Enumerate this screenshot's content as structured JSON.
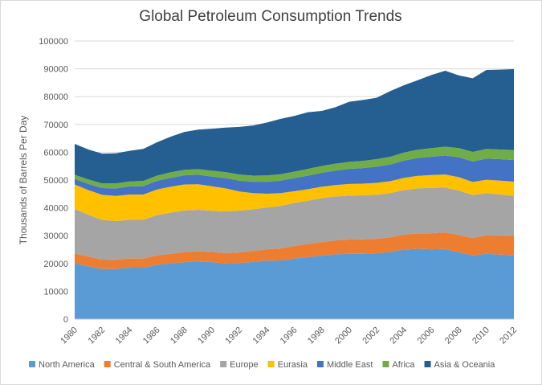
{
  "chart_data": {
    "type": "area",
    "stacked": true,
    "title": "Global Petroleum Consumption  Trends",
    "xlabel": "",
    "ylabel": "Thousands of Barrels Per Day",
    "ylim": [
      0,
      100000
    ],
    "yticks": [
      "0",
      "10000",
      "20000",
      "30000",
      "40000",
      "50000",
      "60000",
      "70000",
      "80000",
      "90000",
      "100000"
    ],
    "x": [
      1980,
      1981,
      1982,
      1983,
      1984,
      1985,
      1986,
      1987,
      1988,
      1989,
      1990,
      1991,
      1992,
      1993,
      1994,
      1995,
      1996,
      1997,
      1998,
      1999,
      2000,
      2001,
      2002,
      2003,
      2004,
      2005,
      2006,
      2007,
      2008,
      2009,
      2010,
      2011,
      2012
    ],
    "xticks": [
      "1980",
      "1982",
      "1984",
      "1986",
      "1988",
      "1990",
      "1992",
      "1994",
      "1996",
      "1998",
      "2000",
      "2002",
      "2004",
      "2006",
      "2008",
      "2010",
      "2012"
    ],
    "grid": true,
    "legend_position": "bottom",
    "series": [
      {
        "name": "North America",
        "color": "#5b9bd5",
        "values": [
          20000,
          19000,
          18000,
          18000,
          18500,
          18500,
          19500,
          20000,
          20500,
          20800,
          20500,
          20000,
          20200,
          20600,
          21000,
          21100,
          21800,
          22300,
          22800,
          23300,
          23500,
          23500,
          23700,
          24200,
          25000,
          25300,
          25100,
          25200,
          24000,
          22900,
          23500,
          23200,
          23000
        ]
      },
      {
        "name": "Central & South America",
        "color": "#ed7d31",
        "values": [
          3600,
          3500,
          3400,
          3300,
          3300,
          3300,
          3400,
          3500,
          3600,
          3600,
          3650,
          3700,
          3800,
          3900,
          4100,
          4300,
          4500,
          4700,
          4900,
          5000,
          5100,
          5200,
          5200,
          5200,
          5400,
          5500,
          5800,
          6000,
          6200,
          6300,
          6600,
          6800,
          7000
        ]
      },
      {
        "name": "Europe",
        "color": "#a5a5a5",
        "values": [
          16000,
          15000,
          14300,
          14000,
          13900,
          13900,
          14500,
          14800,
          15000,
          14900,
          14800,
          15000,
          15000,
          15000,
          15000,
          15300,
          15500,
          15600,
          15800,
          15800,
          15800,
          15800,
          15800,
          15900,
          16000,
          16200,
          16300,
          16100,
          16000,
          15400,
          15200,
          14800,
          14300
        ]
      },
      {
        "name": "Eurasia",
        "color": "#ffc000",
        "values": [
          8800,
          8900,
          9000,
          9000,
          9100,
          9100,
          9200,
          9300,
          9300,
          9200,
          8800,
          8300,
          6900,
          5800,
          5000,
          4600,
          4200,
          4100,
          4100,
          4100,
          4200,
          4200,
          4300,
          4300,
          4400,
          4500,
          4600,
          4700,
          4800,
          4700,
          4800,
          5000,
          5100
        ]
      },
      {
        "name": "Middle East",
        "color": "#4472c4",
        "values": [
          2000,
          2200,
          2400,
          2700,
          2900,
          3000,
          3100,
          3200,
          3300,
          3400,
          3500,
          3700,
          3900,
          4100,
          4300,
          4500,
          4700,
          4900,
          5000,
          5200,
          5400,
          5600,
          5800,
          6000,
          6200,
          6400,
          6600,
          6800,
          7200,
          7400,
          7600,
          7700,
          7800
        ]
      },
      {
        "name": "Africa",
        "color": "#70ad47",
        "values": [
          1500,
          1600,
          1700,
          1800,
          1800,
          1900,
          1900,
          2000,
          2000,
          2050,
          2100,
          2150,
          2200,
          2200,
          2250,
          2300,
          2350,
          2400,
          2450,
          2500,
          2550,
          2600,
          2700,
          2800,
          2900,
          3000,
          3100,
          3200,
          3300,
          3400,
          3500,
          3500,
          3600
        ]
      },
      {
        "name": "Asia & Oceania",
        "color": "#255e91",
        "values": [
          11100,
          10800,
          10700,
          10800,
          11000,
          11500,
          12000,
          12800,
          13600,
          14200,
          15100,
          16000,
          17100,
          18000,
          19000,
          19900,
          20000,
          20400,
          19800,
          20300,
          21600,
          21900,
          22100,
          23600,
          24200,
          25000,
          26300,
          27300,
          26100,
          26500,
          28400,
          28700,
          29100
        ]
      }
    ]
  }
}
